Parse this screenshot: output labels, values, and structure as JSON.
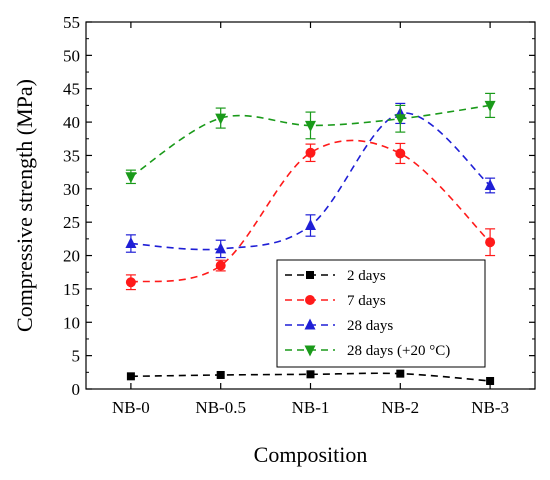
{
  "chart_data": {
    "type": "line",
    "xlabel": "Composition",
    "ylabel": "Compressive strength (MPa)",
    "categories": [
      "NB-0",
      "NB-0.5",
      "NB-1",
      "NB-2",
      "NB-3"
    ],
    "ylim": [
      0,
      55
    ],
    "yticks": [
      0,
      5,
      10,
      15,
      20,
      25,
      30,
      35,
      40,
      45,
      50,
      55
    ],
    "grid": false,
    "legend_position": "bottom-right",
    "line_style": "dashed-smooth",
    "series": [
      {
        "name": "2 days",
        "color": "#000000",
        "marker": "square",
        "values": [
          1.9,
          2.1,
          2.2,
          2.3,
          1.2
        ],
        "errors": [
          0,
          0,
          0,
          0,
          0
        ]
      },
      {
        "name": "7 days",
        "color": "#ff1a1a",
        "marker": "circle",
        "values": [
          16.0,
          18.5,
          35.4,
          35.3,
          22.0
        ],
        "errors": [
          1.1,
          0.8,
          1.3,
          1.5,
          2.0
        ]
      },
      {
        "name": "28 days",
        "color": "#1f1fd6",
        "marker": "triangle-up",
        "values": [
          21.8,
          21.0,
          24.5,
          41.3,
          30.5
        ],
        "errors": [
          1.3,
          1.3,
          1.6,
          1.5,
          1.1
        ]
      },
      {
        "name": "28 days (+20 °C)",
        "color": "#1a9a1a",
        "marker": "triangle-down",
        "values": [
          31.8,
          40.6,
          39.5,
          40.5,
          42.5
        ],
        "errors": [
          1.0,
          1.5,
          2.0,
          2.0,
          1.8
        ]
      }
    ]
  }
}
